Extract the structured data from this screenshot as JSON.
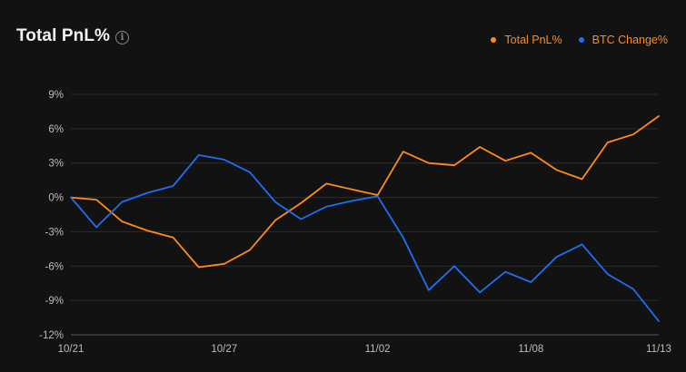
{
  "header": {
    "title": "Total PnL%",
    "info_icon": "i"
  },
  "legend": [
    {
      "label": "Total PnL%",
      "color": "#ff8c1a"
    },
    {
      "label": "BTC Change%",
      "color": "#1f6ff2"
    }
  ],
  "chart_data": {
    "type": "line",
    "title": "Total PnL%",
    "x_tick_labels": [
      "10/21",
      "10/27",
      "11/02",
      "11/08",
      "11/13"
    ],
    "x": [
      "10/21",
      "10/22",
      "10/23",
      "10/24",
      "10/25",
      "10/26",
      "10/27",
      "10/28",
      "10/29",
      "10/30",
      "10/31",
      "11/01",
      "11/02",
      "11/03",
      "11/04",
      "11/05",
      "11/06",
      "11/07",
      "11/08",
      "11/09",
      "11/10",
      "11/11",
      "11/12",
      "11/13"
    ],
    "y_ticks": [
      9,
      6,
      3,
      0,
      -3,
      -6,
      -9,
      -12
    ],
    "y_tick_labels": [
      "9%",
      "6%",
      "3%",
      "0%",
      "-3%",
      "-6%",
      "-9%",
      "-12%"
    ],
    "ylim": [
      -12,
      9
    ],
    "grid": true,
    "legend_position": "top-right",
    "series": [
      {
        "name": "Total PnL%",
        "color": "#ff8c1a",
        "values": [
          0.0,
          -0.2,
          -2.1,
          -2.9,
          -3.5,
          -6.1,
          -5.8,
          -4.6,
          -2.0,
          -0.5,
          1.2,
          0.7,
          0.2,
          4.0,
          3.0,
          2.8,
          4.4,
          3.2,
          3.9,
          2.4,
          1.6,
          4.8,
          5.5,
          7.1
        ]
      },
      {
        "name": "BTC Change%",
        "color": "#1f6ff2",
        "values": [
          0.0,
          -2.6,
          -0.4,
          0.4,
          1.0,
          3.7,
          3.3,
          2.2,
          -0.4,
          -1.9,
          -0.8,
          -0.3,
          0.1,
          -3.5,
          -8.1,
          -6.0,
          -8.3,
          -6.5,
          -7.4,
          -5.2,
          -4.1,
          -6.7,
          -8.0,
          -10.8
        ]
      }
    ]
  }
}
